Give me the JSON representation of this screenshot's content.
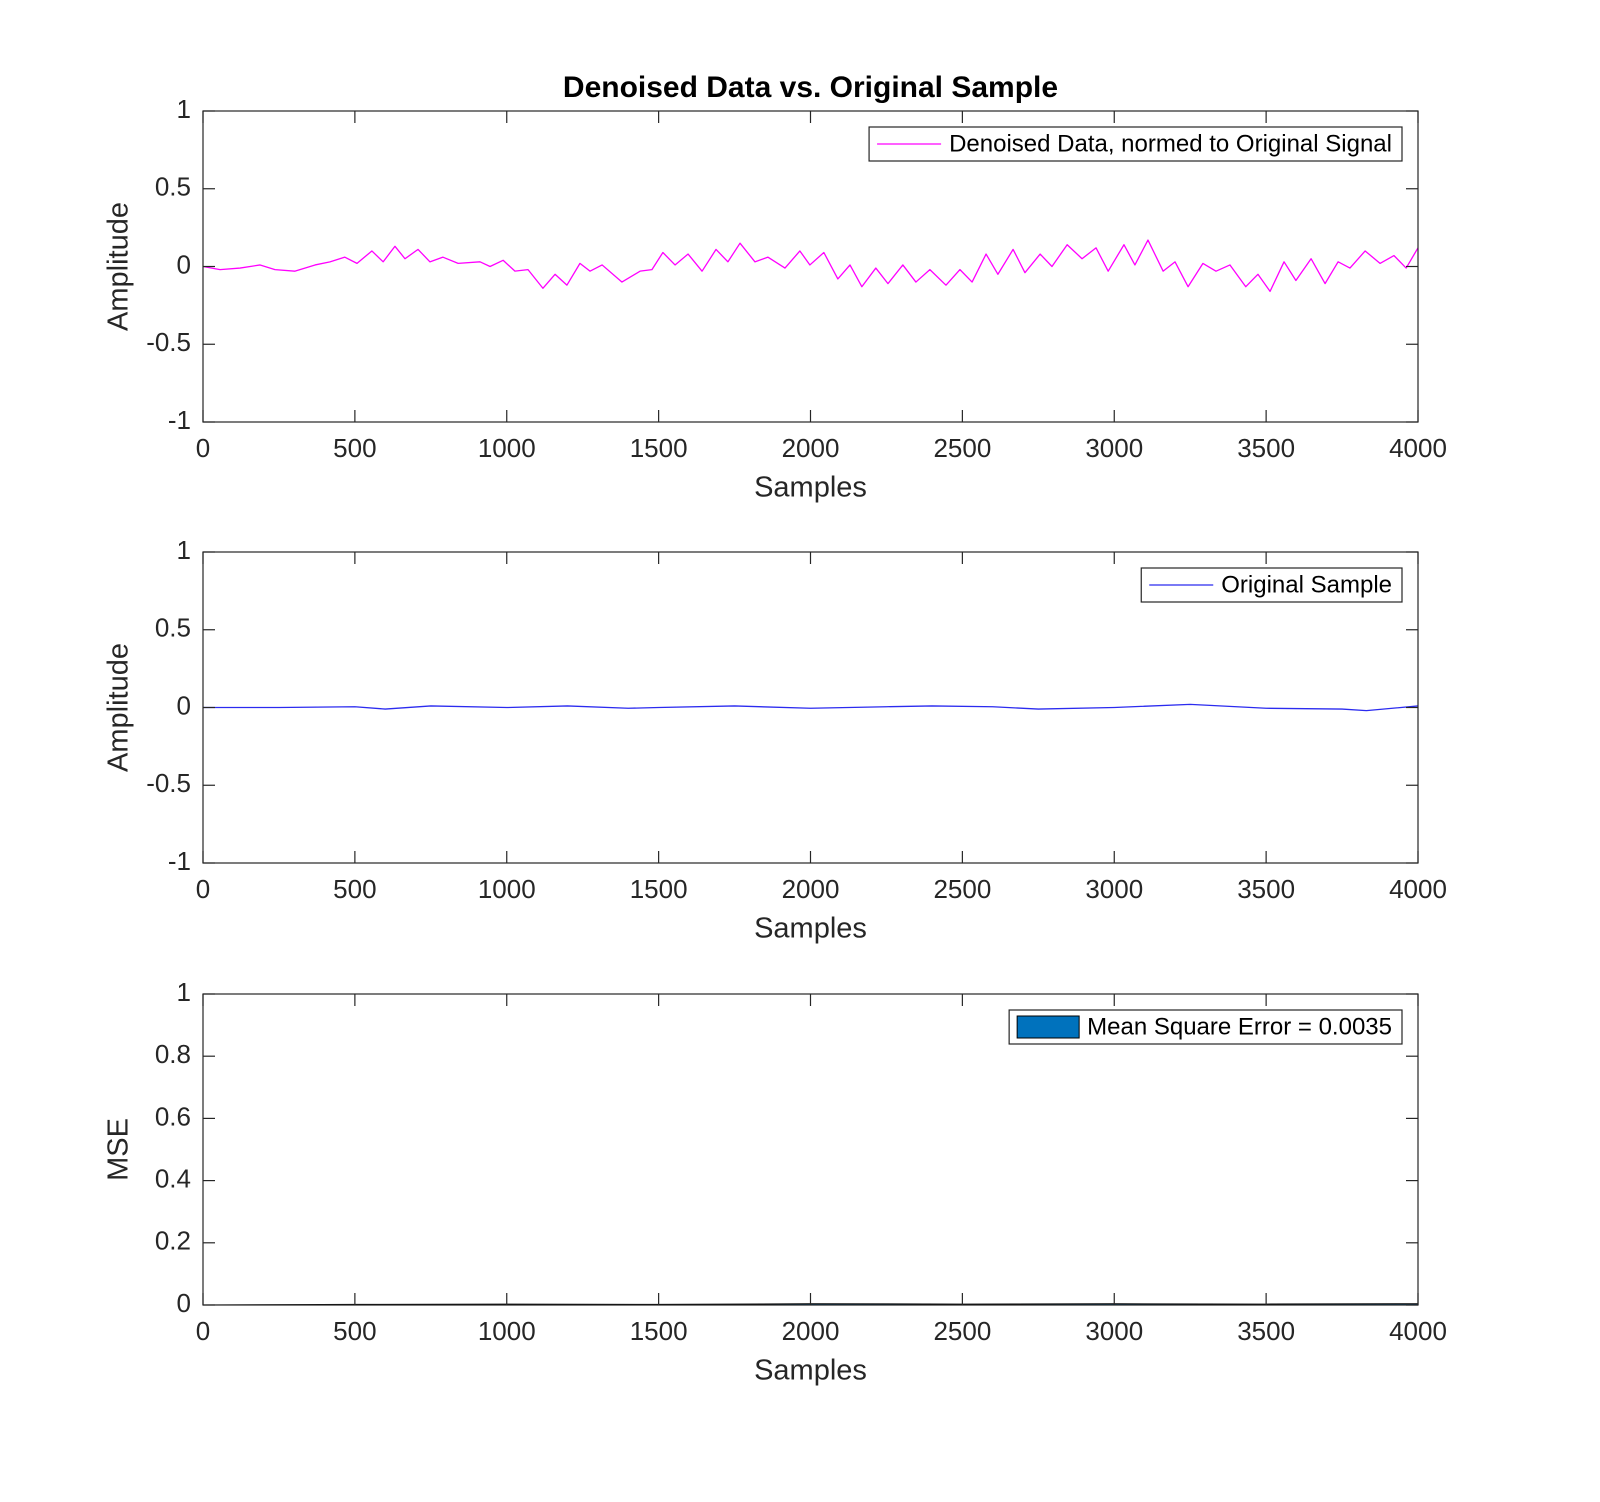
{
  "chart_data": [
    {
      "type": "line",
      "title": "Denoised Data vs. Original Sample",
      "x_label": "Samples",
      "y_label": "Amplitude",
      "xlim": [
        0,
        4000
      ],
      "xticks": [
        0,
        500,
        1000,
        1500,
        2000,
        2500,
        3000,
        3500,
        4000
      ],
      "ylim": [
        -1,
        1
      ],
      "yticks": [
        -1,
        -0.5,
        0,
        0.5,
        1
      ],
      "legend": "northeast",
      "series": [
        {
          "name": "Denoised Data, normed to Original Signal",
          "color": "#ff00ff",
          "x": [
            0,
            56,
            122,
            188,
            237,
            303,
            369,
            418,
            467,
            507,
            556,
            593,
            632,
            665,
            708,
            747,
            790,
            840,
            912,
            945,
            988,
            1027,
            1070,
            1119,
            1159,
            1198,
            1241,
            1274,
            1314,
            1379,
            1439,
            1478,
            1514,
            1554,
            1597,
            1643,
            1689,
            1728,
            1768,
            1817,
            1860,
            1916,
            1965,
            1998,
            2044,
            2090,
            2130,
            2169,
            2215,
            2255,
            2304,
            2347,
            2393,
            2446,
            2492,
            2532,
            2578,
            2617,
            2667,
            2706,
            2756,
            2795,
            2845,
            2894,
            2940,
            2980,
            3032,
            3068,
            3111,
            3161,
            3200,
            3243,
            3292,
            3335,
            3381,
            3433,
            3473,
            3513,
            3559,
            3598,
            3648,
            3694,
            3737,
            3776,
            3826,
            3875,
            3921,
            3961,
            4000
          ],
          "values": [
            0,
            -0.02,
            -0.01,
            0.01,
            -0.02,
            -0.03,
            0.01,
            0.03,
            0.06,
            0.02,
            0.1,
            0.03,
            0.13,
            0.05,
            0.11,
            0.03,
            0.06,
            0.02,
            0.03,
            0,
            0.04,
            -0.03,
            -0.02,
            -0.14,
            -0.05,
            -0.12,
            0.02,
            -0.03,
            0.01,
            -0.1,
            -0.03,
            -0.02,
            0.09,
            0.01,
            0.08,
            -0.03,
            0.11,
            0.03,
            0.15,
            0.03,
            0.06,
            -0.01,
            0.1,
            0.01,
            0.09,
            -0.08,
            0.01,
            -0.13,
            -0.01,
            -0.11,
            0.01,
            -0.1,
            -0.02,
            -0.12,
            -0.02,
            -0.1,
            0.08,
            -0.05,
            0.11,
            -0.04,
            0.08,
            0,
            0.14,
            0.05,
            0.12,
            -0.03,
            0.14,
            0.01,
            0.17,
            -0.03,
            0.03,
            -0.13,
            0.02,
            -0.03,
            0.01,
            -0.13,
            -0.05,
            -0.16,
            0.03,
            -0.09,
            0.05,
            -0.11,
            0.03,
            -0.01,
            0.1,
            0.02,
            0.07,
            -0.01,
            0.12
          ]
        }
      ]
    },
    {
      "type": "line",
      "x_label": "Samples",
      "y_label": "Amplitude",
      "xlim": [
        0,
        4000
      ],
      "xticks": [
        0,
        500,
        1000,
        1500,
        2000,
        2500,
        3000,
        3500,
        4000
      ],
      "ylim": [
        -1,
        1
      ],
      "yticks": [
        -1,
        -0.5,
        0,
        0.5,
        1
      ],
      "legend": "northeast",
      "series": [
        {
          "name": "Original Sample",
          "color": "#2b2bef",
          "x": [
            0,
            250,
            500,
            600,
            750,
            1000,
            1200,
            1400,
            1500,
            1750,
            2000,
            2250,
            2400,
            2600,
            2750,
            3000,
            3250,
            3500,
            3750,
            3830,
            4000
          ],
          "values": [
            0,
            0,
            0.005,
            -0.01,
            0.01,
            0,
            0.01,
            -0.005,
            0,
            0.01,
            -0.005,
            0.005,
            0.01,
            0.005,
            -0.01,
            0,
            0.02,
            -0.005,
            -0.01,
            -0.02,
            0.01
          ]
        }
      ]
    },
    {
      "type": "area",
      "x_label": "Samples",
      "y_label": "MSE",
      "xlim": [
        0,
        4000
      ],
      "xticks": [
        0,
        500,
        1000,
        1500,
        2000,
        2500,
        3000,
        3500,
        4000
      ],
      "ylim": [
        0,
        1
      ],
      "yticks": [
        0,
        0.2,
        0.4,
        0.6,
        0.8,
        1
      ],
      "legend": "northeast",
      "series": [
        {
          "name": "Mean Square Error = 0.0035",
          "color": "#0072bd",
          "x": [
            0,
            500,
            1000,
            1500,
            2000,
            2500,
            3000,
            3500,
            4000
          ],
          "values": [
            0,
            0.002,
            0.003,
            0.002,
            0.004,
            0.003,
            0.004,
            0.003,
            0.004
          ]
        }
      ]
    }
  ]
}
